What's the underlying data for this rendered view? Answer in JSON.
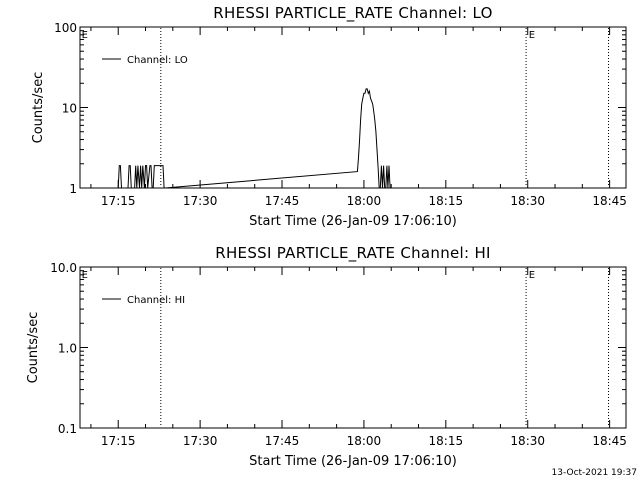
{
  "footer": {
    "timestamp": "13-Oct-2021 19:37"
  },
  "chart_data": [
    {
      "type": "line",
      "title": "RHESSI PARTICLE_RATE Channel: LO",
      "xlabel": "Start Time (26-Jan-09 17:06:10)",
      "ylabel": "Counts/sec",
      "yscale": "log",
      "ylim": [
        1,
        100
      ],
      "ytick_labels": [
        "1",
        "10",
        "100"
      ],
      "yticks": [
        1,
        10,
        100
      ],
      "xlim_minutes": [
        1028,
        1128
      ],
      "xtick_labels": [
        "17:15",
        "17:30",
        "17:45",
        "18:00",
        "18:15",
        "18:30",
        "18:45"
      ],
      "xticks_minutes": [
        1035,
        1050,
        1065,
        1080,
        1095,
        1110,
        1125
      ],
      "legend": {
        "position": "top-left",
        "label": "Channel: LO"
      },
      "markers": [
        {
          "minute": 1028.3,
          "text": "E"
        },
        {
          "minute": 1110.2,
          "text": "E"
        }
      ],
      "vlines_minutes": [
        1042.8,
        1109.7,
        1124.8
      ],
      "series": [
        {
          "name": "Channel: LO",
          "x": [
            1035.0,
            1035.2,
            1035.4,
            1035.6,
            1036.8,
            1037.0,
            1037.2,
            1037.4,
            1038.0,
            1038.2,
            1038.4,
            1038.6,
            1038.9,
            1039.1,
            1039.3,
            1039.5,
            1039.8,
            1040.0,
            1040.2,
            1040.4,
            1040.8,
            1041.0,
            1041.2,
            1041.4,
            1041.6,
            1041.8,
            1043.0,
            1043.2,
            1043.4,
            1043.6,
            1078.8,
            1079.0,
            1079.2,
            1079.4,
            1079.6,
            1079.8,
            1080.0,
            1080.2,
            1080.4,
            1080.6,
            1080.8,
            1081.0,
            1081.2,
            1081.4,
            1081.6,
            1081.8,
            1082.0,
            1082.2,
            1082.4,
            1082.6,
            1082.8,
            1083.0,
            1083.2,
            1083.4,
            1083.6,
            1083.8,
            1084.0,
            1084.2,
            1084.4,
            1084.6,
            1084.8,
            1085.0,
            1085.2,
            1085.4,
            1085.6,
            1085.8,
            1086.0,
            1086.2
          ],
          "y": [
            1,
            1.9,
            1.9,
            1,
            1,
            1.9,
            1.9,
            1,
            1,
            1.9,
            1,
            1.9,
            1,
            1.9,
            1,
            1.9,
            1,
            1.9,
            1.9,
            1,
            1.9,
            1.9,
            1,
            1,
            1.9,
            1.9,
            1.9,
            1.9,
            1,
            1,
            1.6,
            2.4,
            4,
            7,
            11,
            13,
            15,
            15,
            17,
            17,
            15,
            16,
            13,
            12,
            11,
            9,
            7,
            5,
            3,
            1.8,
            1,
            1,
            1.9,
            1,
            1.9,
            1,
            1,
            1.9,
            1,
            1.9,
            1,
            1,
            1,
            1,
            1,
            1,
            1,
            1
          ]
        }
      ]
    },
    {
      "type": "line",
      "title": "RHESSI PARTICLE_RATE Channel: HI",
      "xlabel": "Start Time (26-Jan-09 17:06:10)",
      "ylabel": "Counts/sec",
      "yscale": "log",
      "ylim": [
        0.1,
        10.0
      ],
      "ytick_labels": [
        "0.1",
        "1.0",
        "10.0"
      ],
      "yticks": [
        0.1,
        1.0,
        10.0
      ],
      "xlim_minutes": [
        1028,
        1128
      ],
      "xtick_labels": [
        "17:15",
        "17:30",
        "17:45",
        "18:00",
        "18:15",
        "18:30",
        "18:45"
      ],
      "xticks_minutes": [
        1035,
        1050,
        1065,
        1080,
        1095,
        1110,
        1125
      ],
      "legend": {
        "position": "top-left",
        "label": "Channel: HI"
      },
      "markers": [
        {
          "minute": 1028.3,
          "text": "E"
        },
        {
          "minute": 1110.2,
          "text": "E"
        }
      ],
      "vlines_minutes": [
        1042.8,
        1109.7,
        1124.8
      ],
      "series": [
        {
          "name": "Channel: HI",
          "x": [],
          "y": []
        }
      ]
    }
  ]
}
